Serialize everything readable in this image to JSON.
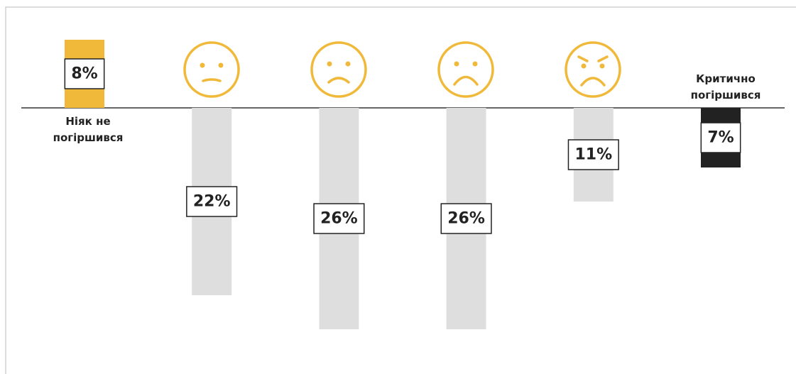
{
  "chart_data": {
    "type": "bar",
    "categories": [
      "Ніяк не погіршився",
      null,
      null,
      null,
      null,
      "Критично погіршився"
    ],
    "values": [
      8,
      22,
      26,
      26,
      11,
      7
    ],
    "value_labels": [
      "8%",
      "22%",
      "26%",
      "26%",
      "11%",
      "7%"
    ],
    "colors": [
      "#f0b93a",
      "#dedede",
      "#dedede",
      "#dedede",
      "#dedede",
      "#222222"
    ]
  }
}
